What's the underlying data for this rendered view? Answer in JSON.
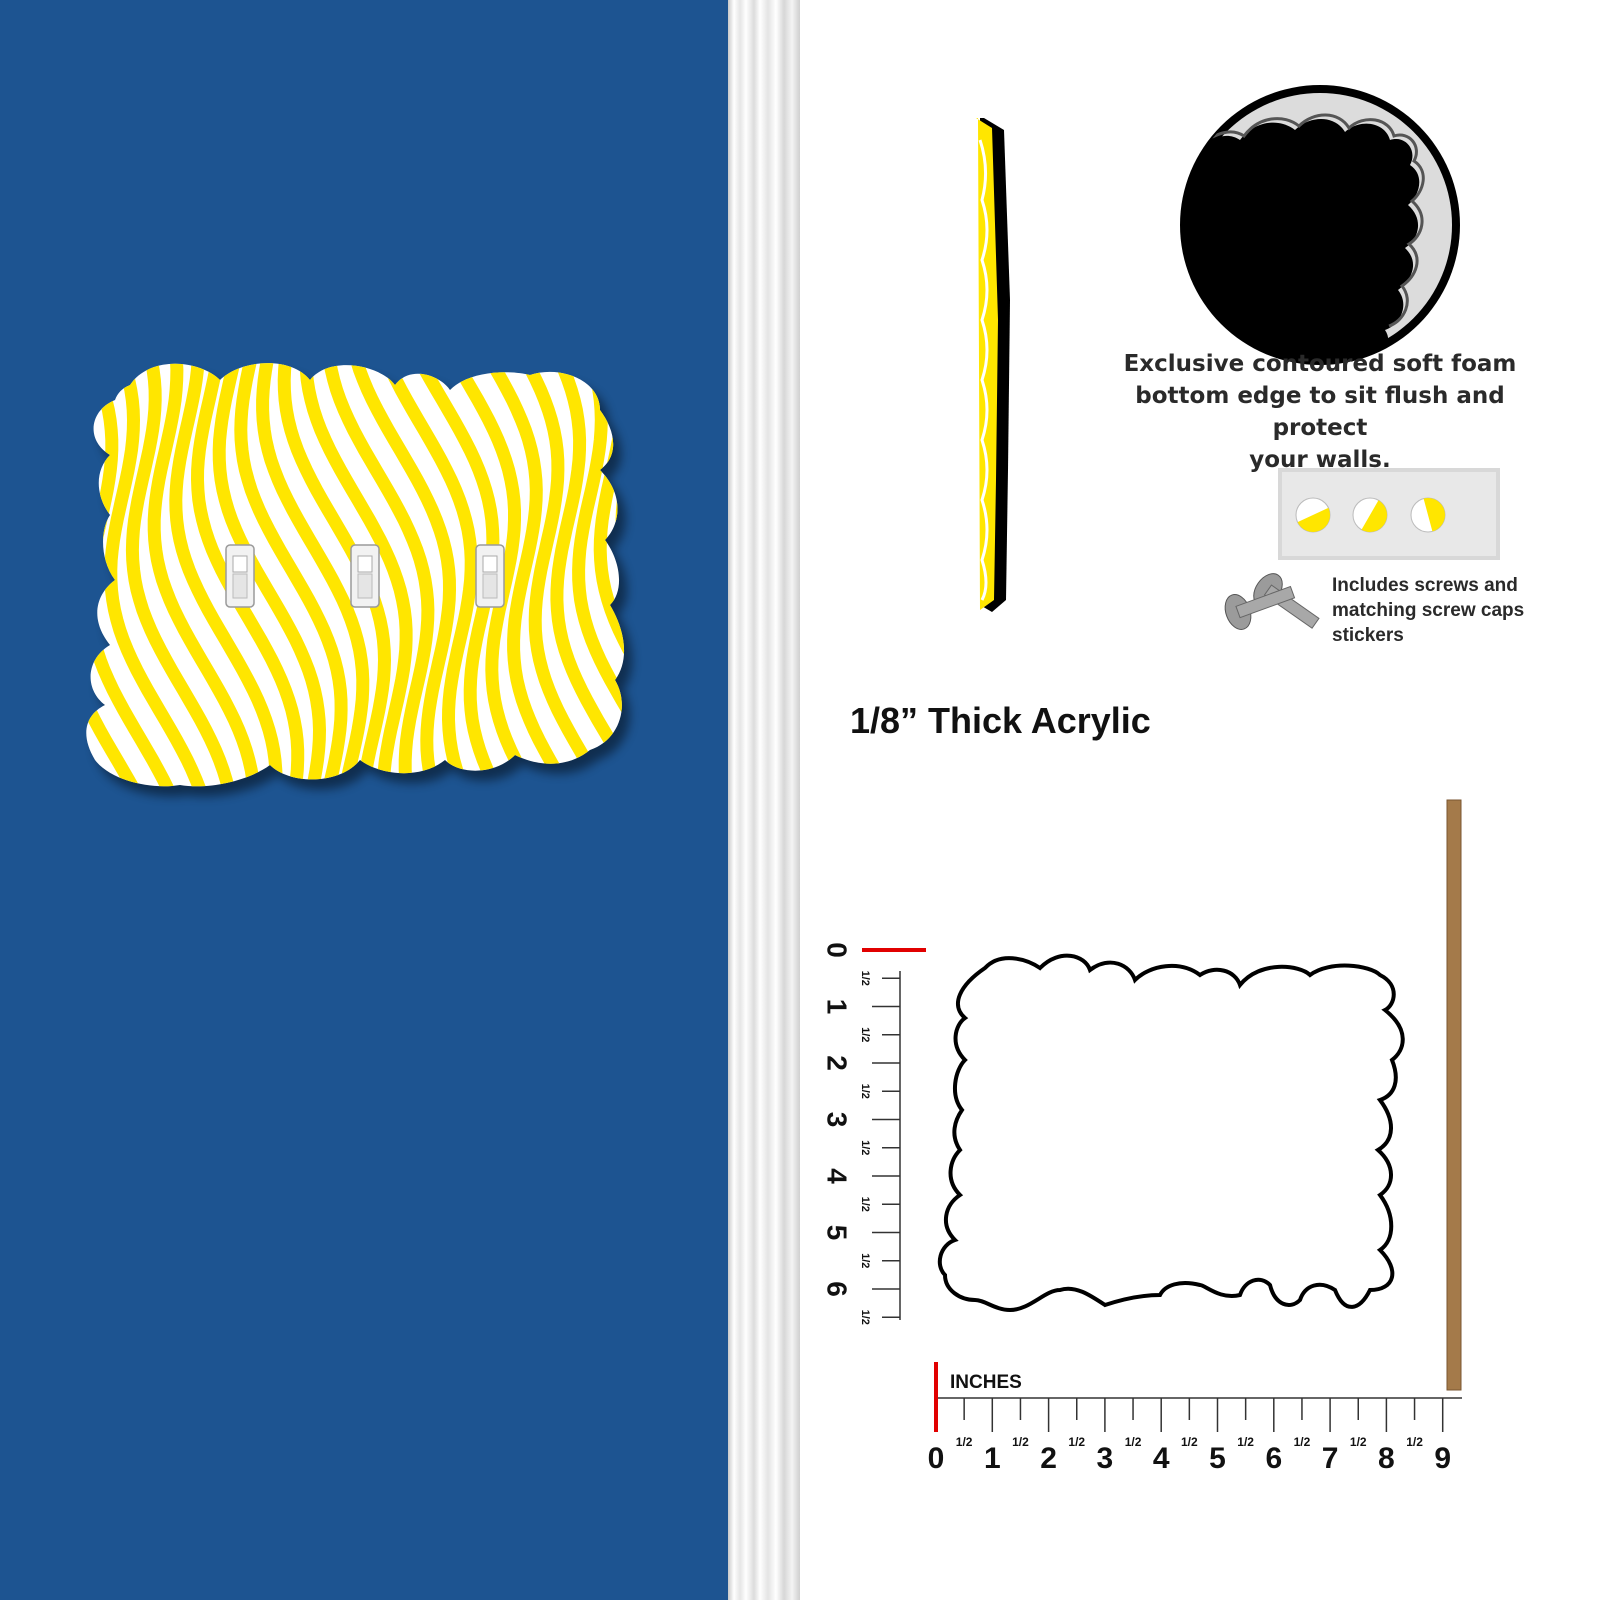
{
  "foam_caption": {
    "line1": "Exclusive contoured soft foam",
    "line2": "bottom edge to sit flush and protect",
    "line3": "your walls."
  },
  "hardware_caption": {
    "line1": "Includes screws and",
    "line2": "matching screw caps",
    "line3": "stickers"
  },
  "thickness_label": "1/8” Thick Acrylic",
  "ruler": {
    "unit_label": "INCHES",
    "half_label": "1/2",
    "horizontal_numbers": [
      "0",
      "1",
      "2",
      "3",
      "4",
      "5",
      "6",
      "7",
      "8",
      "9"
    ],
    "vertical_numbers": [
      "0",
      "1",
      "2",
      "3",
      "4",
      "5",
      "6"
    ]
  },
  "colors": {
    "wall": "#1d5491",
    "plate_yellow": "#ffe600",
    "plate_white": "#ffffff",
    "ruler_start_marker": "#e10000",
    "wood_strip": "#a47a4a"
  },
  "switch_count": 3
}
